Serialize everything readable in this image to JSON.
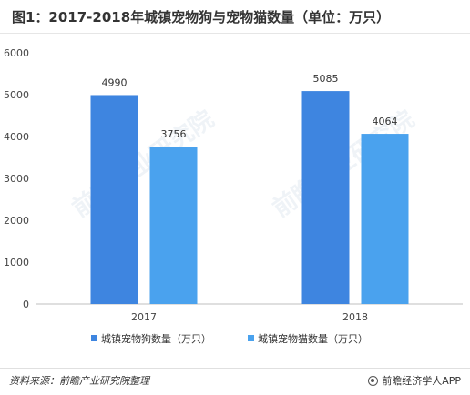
{
  "chart_data": {
    "type": "bar",
    "title": "图1：2017-2018年城镇宠物狗与宠物猫数量（单位：万只）",
    "categories": [
      "2017",
      "2018"
    ],
    "series": [
      {
        "name": "城镇宠物狗数量（万只）",
        "values": [
          4990,
          5085
        ],
        "color": "#3e85e0"
      },
      {
        "name": "城镇宠物猫数量（万只）",
        "values": [
          3756,
          4064
        ],
        "color": "#4aa2ee"
      }
    ],
    "ylim": [
      0,
      6000
    ],
    "yticks": [
      "0",
      "1000",
      "2000",
      "3000",
      "4000",
      "5000",
      "6000"
    ],
    "grid": false,
    "legend_position": "bottom"
  },
  "footer": {
    "source": "资料来源：前瞻产业研究院整理",
    "brand": "前瞻经济学人APP"
  },
  "watermark": "前瞻产业研究院"
}
